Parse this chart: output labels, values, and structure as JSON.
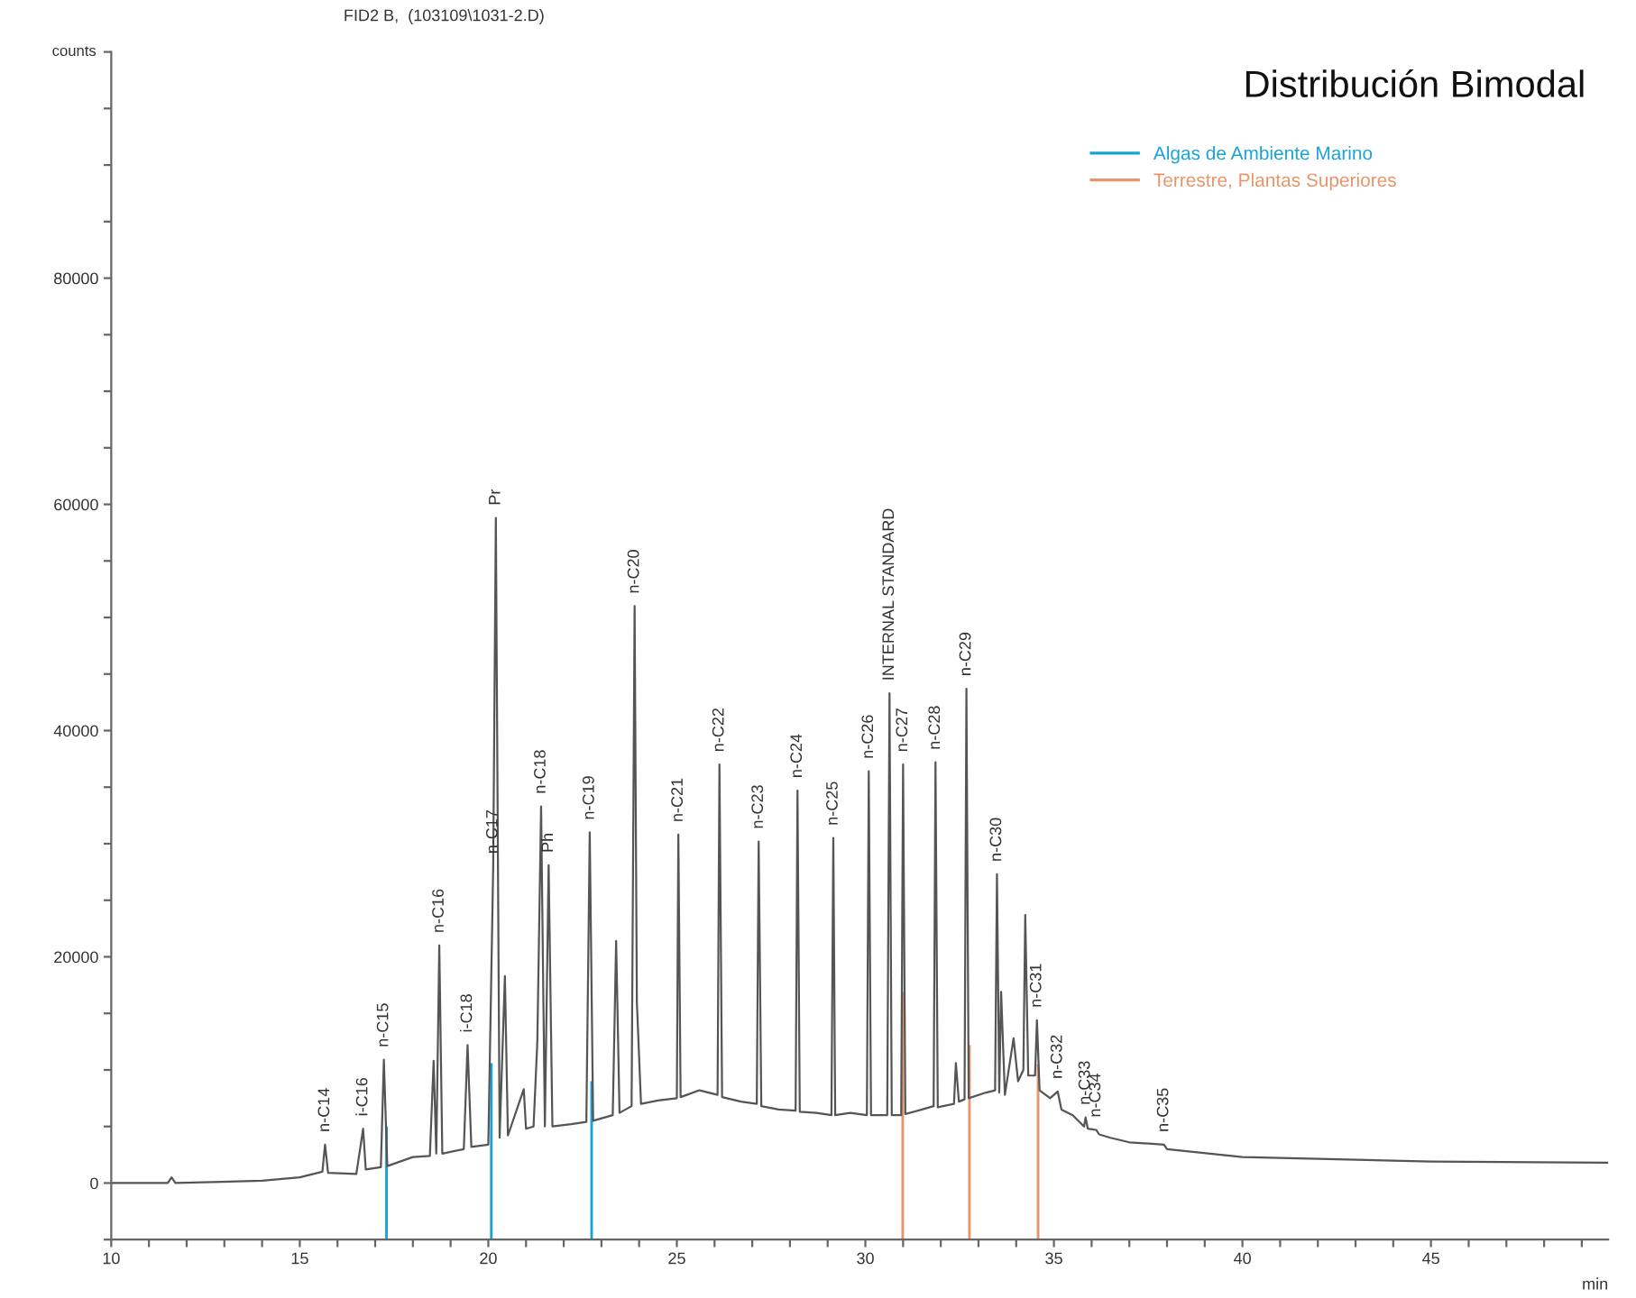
{
  "chart_data": {
    "type": "line",
    "title": "Distribución Bimodal",
    "subtitle": "FID2 B,  (103109\\1031-2.D)",
    "ylabel": "counts",
    "xlabel": "min",
    "xlim": [
      10,
      49.7
    ],
    "ylim": [
      -5000,
      100000
    ],
    "xticks": [
      10,
      {
        "value": 11,
        "label": null
      },
      {
        "value": 12,
        "label": null
      },
      {
        "value": 13,
        "label": null
      },
      {
        "value": 14,
        "label": null
      },
      15,
      {
        "value": 16,
        "label": null
      },
      {
        "value": 17,
        "label": null
      },
      {
        "value": 18,
        "label": null
      },
      {
        "value": 19,
        "label": null
      },
      20,
      {
        "value": 21,
        "label": null
      },
      {
        "value": 22,
        "label": null
      },
      {
        "value": 23,
        "label": null
      },
      {
        "value": 24,
        "label": null
      },
      25,
      {
        "value": 26,
        "label": null
      },
      {
        "value": 27,
        "label": null
      },
      {
        "value": 28,
        "label": null
      },
      {
        "value": 29,
        "label": null
      },
      30,
      {
        "value": 31,
        "label": null
      },
      {
        "value": 32,
        "label": null
      },
      {
        "value": 33,
        "label": null
      },
      {
        "value": 34,
        "label": null
      },
      35,
      {
        "value": 36,
        "label": null
      },
      {
        "value": 37,
        "label": null
      },
      {
        "value": 38,
        "label": null
      },
      {
        "value": 39,
        "label": null
      },
      40,
      {
        "value": 41,
        "label": null
      },
      {
        "value": 42,
        "label": null
      },
      {
        "value": 43,
        "label": null
      },
      {
        "value": 44,
        "label": null
      },
      45,
      {
        "value": 46,
        "label": null
      },
      {
        "value": 47,
        "label": null
      },
      {
        "value": 48,
        "label": null
      },
      {
        "value": 49,
        "label": null
      }
    ],
    "yticks": [
      {
        "value": -5000,
        "label": null
      },
      0,
      {
        "value": 5000,
        "label": null
      },
      {
        "value": 10000,
        "label": null
      },
      {
        "value": 15000,
        "label": null
      },
      20000,
      {
        "value": 25000,
        "label": null
      },
      {
        "value": 30000,
        "label": null
      },
      {
        "value": 35000,
        "label": null
      },
      40000,
      {
        "value": 45000,
        "label": null
      },
      {
        "value": 50000,
        "label": null
      },
      {
        "value": 55000,
        "label": null
      },
      60000,
      {
        "value": 65000,
        "label": null
      },
      {
        "value": 70000,
        "label": null
      },
      {
        "value": 75000,
        "label": null
      },
      80000,
      {
        "value": 85000,
        "label": null
      },
      {
        "value": 90000,
        "label": null
      },
      {
        "value": 95000,
        "label": null
      },
      {
        "value": 100000,
        "label": null
      }
    ],
    "grid": false,
    "legend": "top right",
    "marker": "none",
    "line_style": "solid",
    "series": [
      {
        "color": "#555555",
        "x": [
          10,
          11.5,
          11.6,
          11.7,
          14,
          15,
          15.6,
          15.67,
          15.75,
          16.5,
          16.68,
          16.75,
          17.15,
          17.23,
          17.32,
          18,
          18.45,
          18.55,
          18.62,
          18.7,
          18.78,
          19.35,
          19.45,
          19.55,
          20.0,
          20.13,
          20.2,
          20.3,
          20.44,
          20.52,
          20.94,
          21.0,
          21.2,
          21.3,
          21.4,
          21.5,
          21.6,
          21.7,
          22.2,
          22.6,
          22.69,
          22.78,
          23.3,
          23.39,
          23.48,
          23.8,
          23.88,
          23.94,
          24.05,
          24.5,
          25.0,
          25.04,
          25.1,
          25.6,
          26.08,
          26.13,
          26.2,
          26.7,
          27.12,
          27.17,
          27.24,
          27.7,
          28.15,
          28.2,
          28.26,
          28.7,
          29.1,
          29.15,
          29.2,
          29.6,
          30.04,
          30.09,
          30.15,
          30.58,
          30.64,
          30.7,
          30.95,
          31.0,
          31.06,
          31.5,
          31.81,
          31.86,
          31.92,
          32.35,
          32.4,
          32.48,
          32.63,
          32.68,
          32.74,
          33.2,
          33.44,
          33.49,
          33.55,
          33.6,
          33.7,
          33.93,
          34.05,
          34.19,
          34.24,
          34.32,
          34.5,
          34.55,
          34.62,
          34.9,
          35.1,
          35.2,
          35.5,
          35.8,
          35.84,
          35.9,
          36.12,
          36.2,
          36.5,
          37.0,
          37.92,
          38.0,
          40,
          45,
          49.7
        ],
        "values": [
          0,
          0,
          500,
          0,
          200,
          500,
          1000,
          3400,
          900,
          800,
          4800,
          1200,
          1400,
          10900,
          1500,
          2300,
          2400,
          10800,
          2600,
          21000,
          2600,
          3000,
          12200,
          3200,
          3400,
          28000,
          58800,
          4000,
          18300,
          4200,
          8300,
          4800,
          5000,
          12500,
          33300,
          5000,
          28100,
          5000,
          5200,
          5400,
          31000,
          5500,
          6000,
          21400,
          6200,
          6800,
          51000,
          16000,
          7000,
          7300,
          7500,
          30800,
          7600,
          8200,
          7800,
          37000,
          7600,
          7200,
          7000,
          30200,
          6800,
          6500,
          6400,
          34700,
          6300,
          6200,
          6000,
          30500,
          6000,
          6200,
          6000,
          36400,
          6000,
          6000,
          43300,
          6000,
          6000,
          37000,
          6100,
          6500,
          6800,
          37200,
          6700,
          7000,
          10600,
          7200,
          7400,
          43700,
          7500,
          8000,
          8200,
          27300,
          8000,
          16900,
          7800,
          12800,
          9000,
          10000,
          23700,
          9500,
          9500,
          14400,
          8200,
          7500,
          8100,
          6500,
          6000,
          5000,
          5800,
          4800,
          4700,
          4300,
          4000,
          3600,
          3400,
          3000,
          2300,
          1900,
          1800
        ]
      },
      {
        "name": "Algas de Ambiente Marino",
        "type": "bar",
        "color": "#1aa3d6",
        "x": [
          17.3,
          20.08,
          22.74
        ],
        "base": [
          -5000,
          -5000,
          -5000
        ],
        "values": [
          10000,
          15600,
          14000
        ]
      },
      {
        "name": "Terrestre, Plantas Superiores",
        "type": "bar",
        "color": "#e8956a",
        "x": [
          30.99,
          32.76,
          34.58
        ],
        "base": [
          -5000,
          -5000,
          -5000
        ],
        "values": [
          21900,
          17200,
          15500
        ]
      }
    ],
    "annotations": [
      {
        "text": "n-C14",
        "x": 15.67,
        "y": 3400
      },
      {
        "text": "i-C16",
        "x": 16.68,
        "y": 4800
      },
      {
        "text": "n-C15",
        "x": 17.23,
        "y": 10900
      },
      {
        "text": "n-C16",
        "x": 18.7,
        "y": 21000
      },
      {
        "text": "i-C18",
        "x": 19.45,
        "y": 12200
      },
      {
        "text": "n-C17",
        "x": 20.13,
        "y": 28000
      },
      {
        "text": "Pr",
        "x": 20.2,
        "y": 58800
      },
      {
        "text": "n-C18",
        "x": 21.4,
        "y": 33300
      },
      {
        "text": "Ph",
        "x": 21.6,
        "y": 28100
      },
      {
        "text": "n-C19",
        "x": 22.69,
        "y": 31000
      },
      {
        "text": "n-C20",
        "x": 23.88,
        "y": 51000
      },
      {
        "text": "n-C21",
        "x": 25.04,
        "y": 30800
      },
      {
        "text": "n-C22",
        "x": 26.13,
        "y": 37000
      },
      {
        "text": "n-C23",
        "x": 27.17,
        "y": 30200
      },
      {
        "text": "n-C24",
        "x": 28.2,
        "y": 34700
      },
      {
        "text": "n-C25",
        "x": 29.15,
        "y": 30500
      },
      {
        "text": "n-C26",
        "x": 30.09,
        "y": 36400
      },
      {
        "text": "INTERNAL STANDARD",
        "x": 30.64,
        "y": 43300
      },
      {
        "text": "n-C27",
        "x": 31.0,
        "y": 37000
      },
      {
        "text": "n-C28",
        "x": 31.86,
        "y": 37200
      },
      {
        "text": "n-C29",
        "x": 32.68,
        "y": 43700
      },
      {
        "text": "n-C30",
        "x": 33.49,
        "y": 27300
      },
      {
        "text": "n-C31",
        "x": 34.55,
        "y": 14400
      },
      {
        "text": "n-C32",
        "x": 35.1,
        "y": 8100
      },
      {
        "text": "n-C33",
        "x": 35.84,
        "y": 5800
      },
      {
        "text": "n-C34",
        "x": 36.12,
        "y": 4700
      },
      {
        "text": "n-C35",
        "x": 37.92,
        "y": 3400
      }
    ]
  }
}
